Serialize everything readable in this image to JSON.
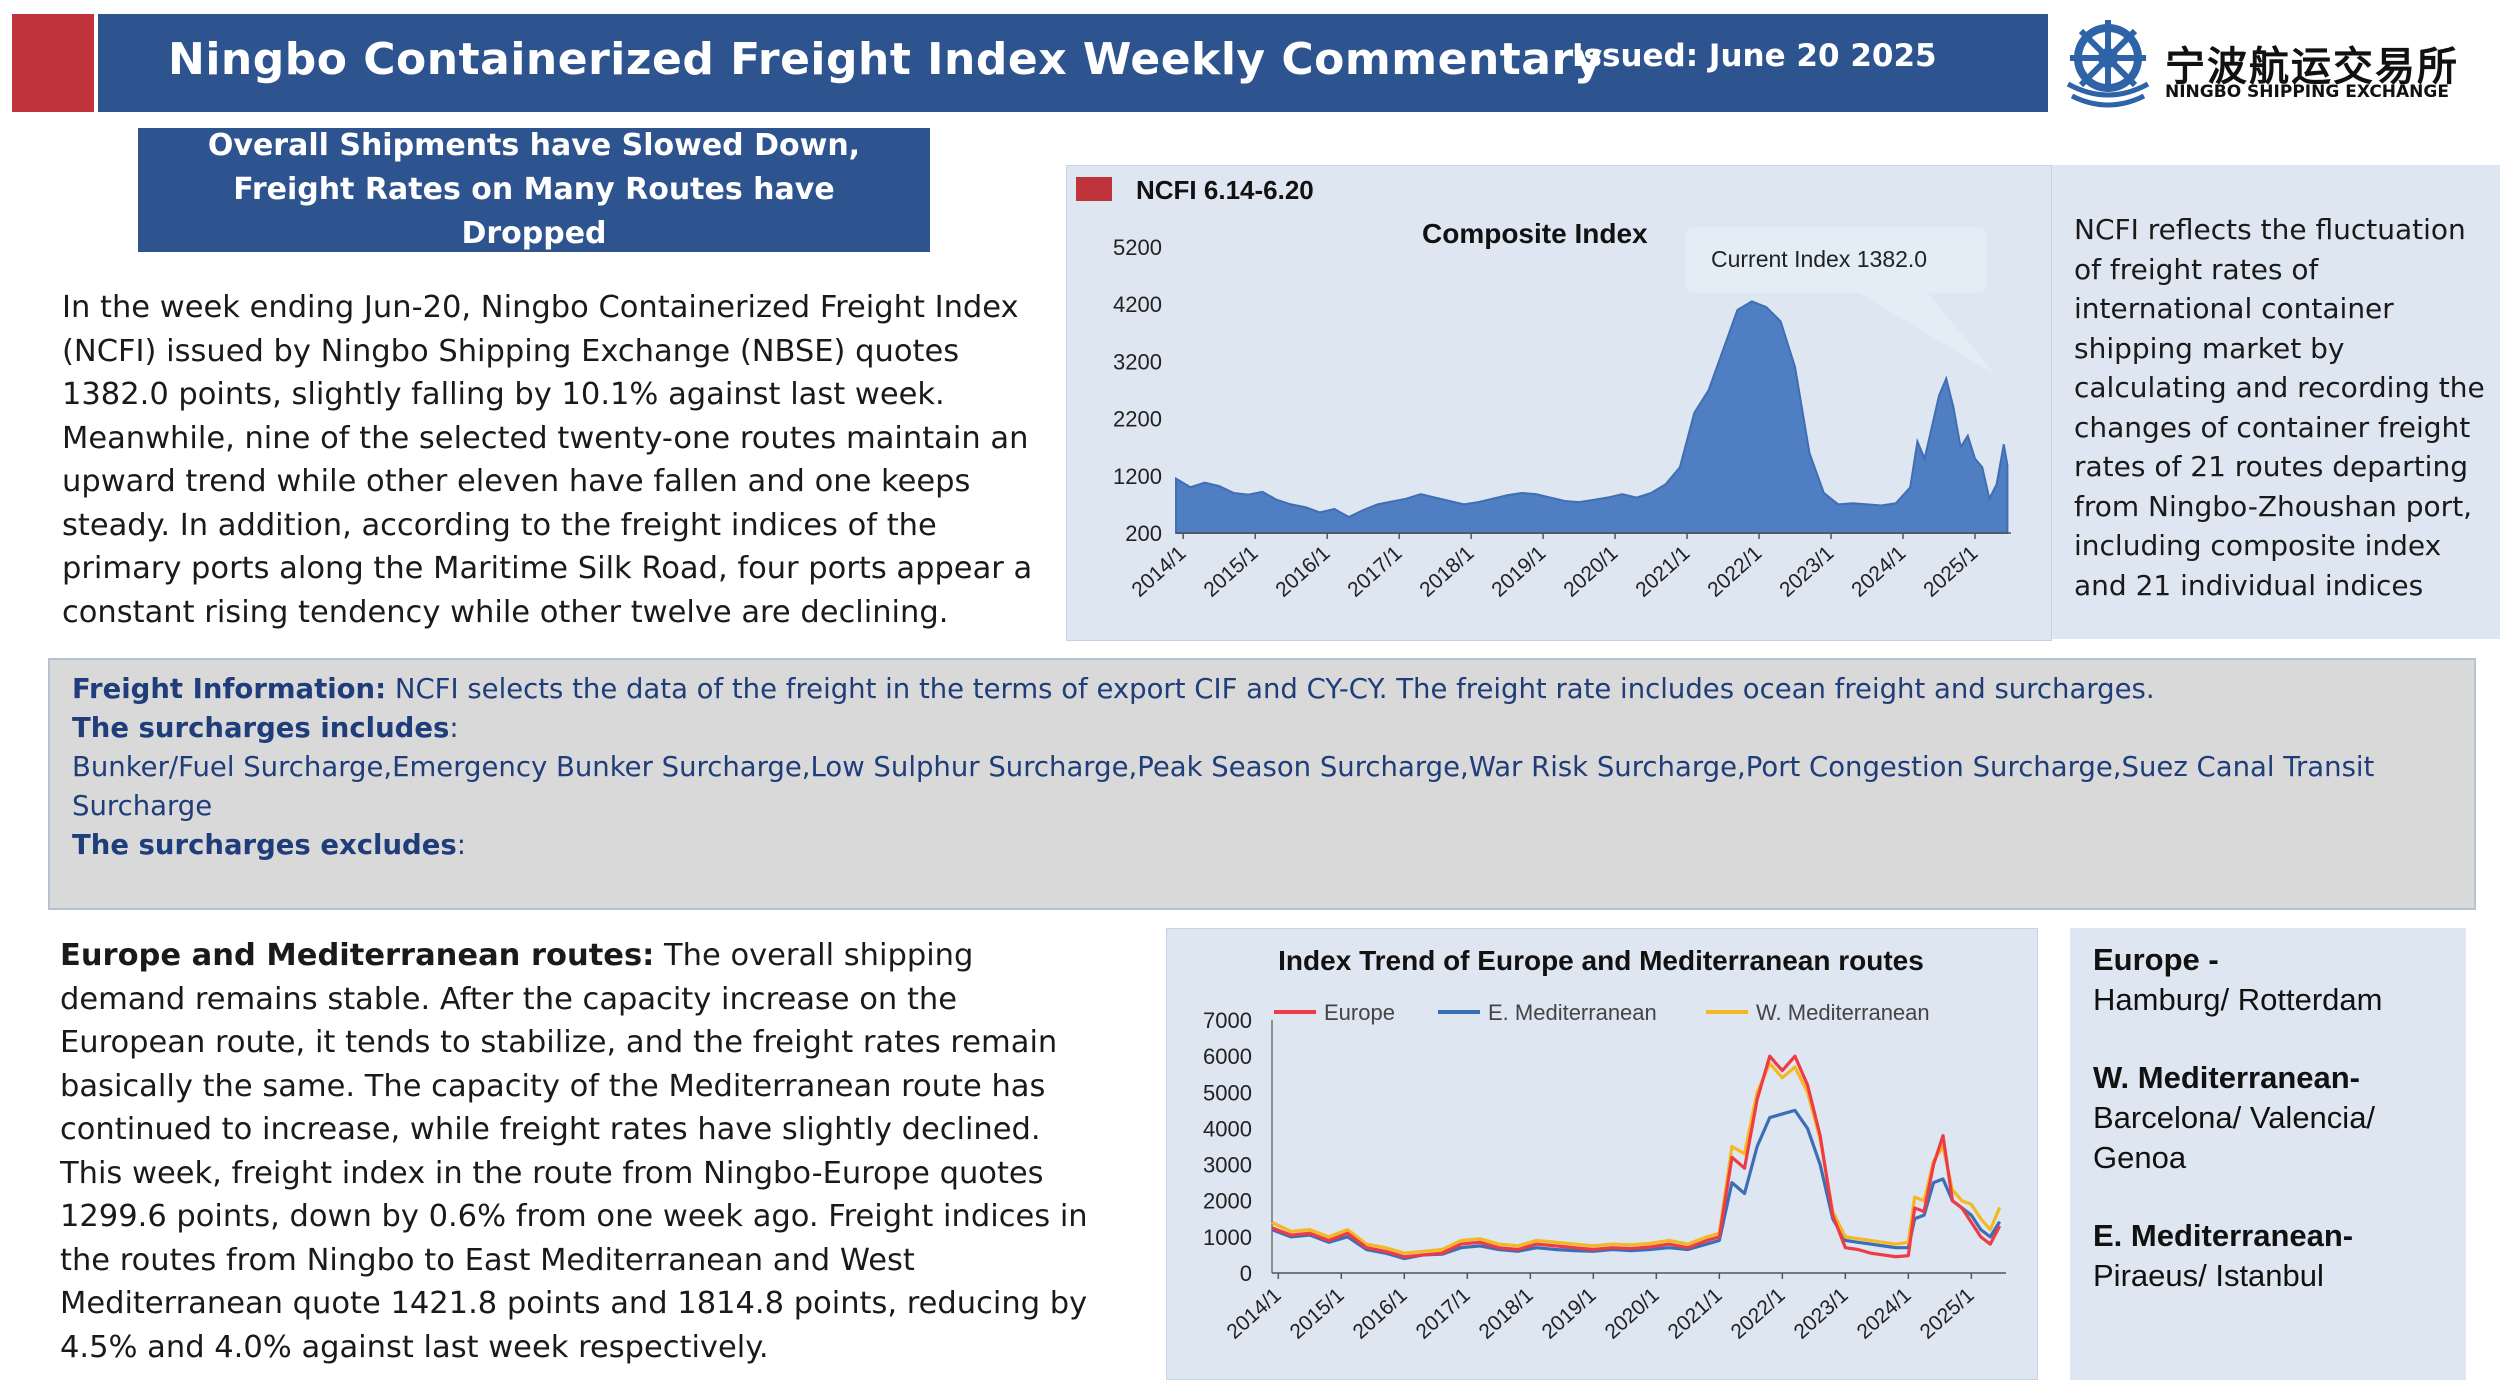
{
  "header": {
    "title": "Ningbo Containerized Freight Index Weekly Commentary",
    "issued": "Issued: June 20 2025",
    "logo_cn": "宁波航运交易所",
    "logo_en": "NINGBO SHIPPING EXCHANGE",
    "accent_red": "#c0333a",
    "brand_blue": "#2e5490"
  },
  "headline": "Overall Shipments have Slowed Down, Freight Rates on Many Routes have Dropped",
  "intro": "In the week ending Jun-20, Ningbo Containerized Freight Index (NCFI) issued by Ningbo Shipping Exchange (NBSE) quotes 1382.0 points, slightly falling by 10.1% against last week. Meanwhile, nine of the selected twenty-one routes maintain an upward trend while other eleven have fallen and one keeps steady. In addition, according to the freight indices of the primary ports along the Maritime Silk Road, four ports appear a constant rising tendency while other twelve are declining.",
  "composite_side": "NCFI reflects the fluctuation of freight rates of international container shipping market by calculating and recording the changes of container freight rates of 21 routes departing from Ningbo-Zhoushan port, including composite index and 21 individual indices",
  "freight": {
    "info_label": "Freight Information:",
    "info_text": " NCFI selects the data of the freight in the terms of export CIF and CY-CY. The freight rate includes ocean freight and surcharges.",
    "inc_label": "The surcharges includes",
    "inc_colon": ":",
    "inc_text": "Bunker/Fuel Surcharge,Emergency Bunker Surcharge,Low Sulphur Surcharge,Peak Season Surcharge,War Risk Surcharge,Port Congestion Surcharge,Suez Canal Transit Surcharge",
    "exc_label": "The surcharges excludes",
    "exc_colon": ":"
  },
  "europe_para": {
    "lead": "Europe and Mediterranean routes:",
    "text": " The overall shipping demand remains stable. After the capacity increase on the European route, it tends to stabilize, and the freight rates remain basically the same. The capacity of the Mediterranean route has continued to increase, while freight rates have slightly declined. This week, freight index in the route from Ningbo-Europe quotes 1299.6 points, down by 0.6% from one week ago. Freight indices in the routes from Ningbo to East Mediterranean and West Mediterranean quote 1421.8 points and 1814.8 points, reducing by 4.5% and 4.0% against last week respectively."
  },
  "europe_side": {
    "europe_h": "Europe -",
    "europe_p": "Hamburg/ Rotterdam",
    "wmed_h": "W. Mediterranean-",
    "wmed_p1": "Barcelona/ Valencia/",
    "wmed_p2": "Genoa",
    "emed_h": "E. Mediterranean-",
    "emed_p": "Piraeus/ Istanbul"
  },
  "chart_data": [
    {
      "type": "area",
      "title": "Composite Index",
      "legend": [
        {
          "name": "NCFI 6.14-6.20",
          "color": "#c0333a"
        }
      ],
      "annotation": "Current Index 1382.0",
      "x_ticks": [
        "2014/1",
        "2015/1",
        "2016/1",
        "2017/1",
        "2018/1",
        "2019/1",
        "2020/1",
        "2021/1",
        "2022/1",
        "2023/1",
        "2024/1",
        "2025/1"
      ],
      "y_ticks": [
        200,
        1200,
        2200,
        3200,
        4200,
        5200
      ],
      "ylim": [
        200,
        5200
      ],
      "fill_color": "#4f7fc2",
      "series": [
        {
          "name": "NCFI",
          "x": [
            2013.9,
            2014.1,
            2014.3,
            2014.5,
            2014.7,
            2014.9,
            2015.1,
            2015.3,
            2015.5,
            2015.7,
            2015.9,
            2016.1,
            2016.3,
            2016.5,
            2016.7,
            2016.9,
            2017.1,
            2017.3,
            2017.5,
            2017.7,
            2017.9,
            2018.1,
            2018.3,
            2018.5,
            2018.7,
            2018.9,
            2019.1,
            2019.3,
            2019.5,
            2019.7,
            2019.9,
            2020.1,
            2020.3,
            2020.5,
            2020.7,
            2020.9,
            2021.1,
            2021.3,
            2021.5,
            2021.7,
            2021.9,
            2022.1,
            2022.3,
            2022.5,
            2022.7,
            2022.9,
            2023.1,
            2023.3,
            2023.5,
            2023.7,
            2023.9,
            2024.1,
            2024.2,
            2024.3,
            2024.5,
            2024.6,
            2024.7,
            2024.8,
            2024.9,
            2025.0,
            2025.1,
            2025.2,
            2025.3,
            2025.4,
            2025.45
          ],
          "y": [
            1150,
            1000,
            1080,
            1020,
            900,
            870,
            920,
            780,
            700,
            650,
            560,
            620,
            480,
            600,
            700,
            750,
            800,
            880,
            820,
            760,
            700,
            740,
            800,
            860,
            900,
            880,
            820,
            760,
            740,
            780,
            820,
            880,
            820,
            900,
            1050,
            1350,
            2300,
            2700,
            3400,
            4100,
            4250,
            4150,
            3900,
            3100,
            1600,
            900,
            700,
            720,
            700,
            680,
            720,
            1000,
            1800,
            1500,
            2600,
            2900,
            2400,
            1700,
            1900,
            1500,
            1350,
            800,
            1050,
            1750,
            1382
          ]
        }
      ]
    },
    {
      "type": "line",
      "title": "Index Trend of Europe and Mediterranean routes",
      "x_ticks": [
        "2014/1",
        "2015/1",
        "2016/1",
        "2017/1",
        "2018/1",
        "2019/1",
        "2020/1",
        "2021/1",
        "2022/1",
        "2023/1",
        "2024/1",
        "2025/1"
      ],
      "y_ticks": [
        0,
        1000,
        2000,
        3000,
        4000,
        5000,
        6000,
        7000
      ],
      "ylim": [
        0,
        7000
      ],
      "legend_position": "top",
      "x": [
        2013.9,
        2014.2,
        2014.5,
        2014.8,
        2015.1,
        2015.4,
        2015.7,
        2016.0,
        2016.3,
        2016.6,
        2016.9,
        2017.2,
        2017.5,
        2017.8,
        2018.1,
        2018.4,
        2018.7,
        2019.0,
        2019.3,
        2019.6,
        2019.9,
        2020.2,
        2020.5,
        2020.8,
        2021.0,
        2021.2,
        2021.4,
        2021.6,
        2021.8,
        2022.0,
        2022.2,
        2022.4,
        2022.6,
        2022.8,
        2023.0,
        2023.2,
        2023.4,
        2023.6,
        2023.8,
        2024.0,
        2024.1,
        2024.25,
        2024.4,
        2024.55,
        2024.7,
        2024.85,
        2025.0,
        2025.15,
        2025.3,
        2025.45
      ],
      "series": [
        {
          "name": "Europe",
          "color": "#ee3b45",
          "values": [
            1250,
            1050,
            1100,
            900,
            1100,
            700,
            600,
            450,
            500,
            550,
            800,
            850,
            700,
            650,
            800,
            750,
            700,
            650,
            700,
            680,
            720,
            800,
            700,
            900,
            1000,
            3200,
            2900,
            4800,
            6000,
            5600,
            6000,
            5200,
            3800,
            1600,
            700,
            650,
            550,
            500,
            450,
            480,
            1800,
            1700,
            3000,
            3800,
            2000,
            1800,
            1400,
            1000,
            800,
            1300
          ]
        },
        {
          "name": "E. Mediterranean",
          "color": "#3a6fb5",
          "values": [
            1200,
            1000,
            1050,
            850,
            1000,
            650,
            550,
            400,
            500,
            520,
            700,
            750,
            650,
            600,
            700,
            650,
            620,
            600,
            650,
            620,
            650,
            700,
            650,
            800,
            900,
            2500,
            2200,
            3500,
            4300,
            4400,
            4500,
            4000,
            3000,
            1500,
            900,
            850,
            800,
            750,
            700,
            700,
            1500,
            1600,
            2500,
            2600,
            2000,
            1800,
            1600,
            1200,
            1000,
            1421.8
          ]
        },
        {
          "name": "W. Mediterranean",
          "color": "#f5b820",
          "values": [
            1400,
            1150,
            1200,
            1000,
            1200,
            800,
            700,
            550,
            600,
            650,
            900,
            950,
            800,
            750,
            900,
            850,
            800,
            750,
            800,
            780,
            820,
            900,
            800,
            1000,
            1100,
            3500,
            3300,
            5000,
            5800,
            5400,
            5700,
            5000,
            3700,
            1700,
            1000,
            950,
            900,
            850,
            800,
            850,
            2100,
            2000,
            3100,
            3500,
            2300,
            2000,
            1900,
            1500,
            1200,
            1814.8
          ]
        }
      ]
    }
  ]
}
